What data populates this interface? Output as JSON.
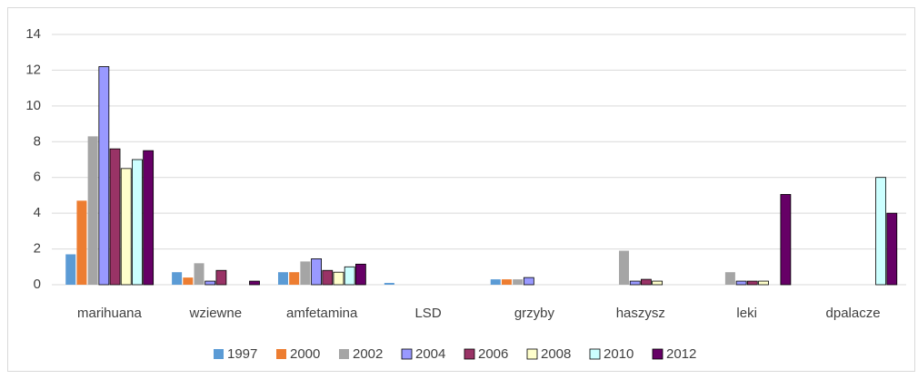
{
  "chart_data": {
    "type": "bar",
    "categories": [
      "marihuana",
      "wziewne",
      "amfetamina",
      "LSD",
      "grzyby",
      "haszysz",
      "leki",
      "dpalacze"
    ],
    "series": [
      {
        "name": "1997",
        "color": "#5b9bd5",
        "values": [
          1.7,
          0.7,
          0.7,
          0.1,
          0.3,
          null,
          null,
          null
        ]
      },
      {
        "name": "2000",
        "color": "#ed7d31",
        "values": [
          4.7,
          0.4,
          0.7,
          null,
          0.3,
          null,
          null,
          null
        ]
      },
      {
        "name": "2002",
        "color": "#a5a5a5",
        "values": [
          8.3,
          1.2,
          1.3,
          null,
          0.3,
          1.9,
          0.7,
          null
        ]
      },
      {
        "name": "2004",
        "color": "#9999ff",
        "values": [
          12.2,
          0.2,
          1.45,
          null,
          0.4,
          0.2,
          0.2,
          null
        ]
      },
      {
        "name": "2006",
        "color": "#993366",
        "values": [
          7.6,
          0.8,
          0.8,
          null,
          null,
          0.3,
          0.2,
          null
        ]
      },
      {
        "name": "2008",
        "color": "#ffffcc",
        "values": [
          6.5,
          null,
          0.7,
          null,
          null,
          0.2,
          0.2,
          null
        ]
      },
      {
        "name": "2010",
        "color": "#ccffff",
        "values": [
          7.0,
          null,
          1.0,
          null,
          null,
          null,
          null,
          6.0
        ]
      },
      {
        "name": "2012",
        "color": "#660066",
        "values": [
          7.5,
          0.2,
          1.15,
          null,
          null,
          null,
          5.05,
          4.0
        ]
      }
    ],
    "ylim": [
      0,
      14
    ],
    "yticks": [
      0,
      2,
      4,
      6,
      8,
      10,
      12,
      14
    ],
    "grid": true,
    "legend": "bottom"
  }
}
